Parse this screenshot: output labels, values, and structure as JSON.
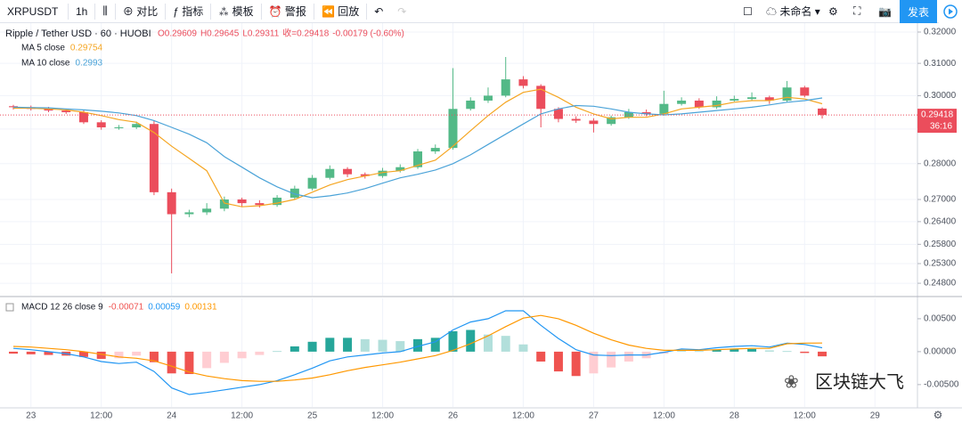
{
  "toolbar": {
    "symbol": "XRPUSDT",
    "interval": "1h",
    "compare": "对比",
    "indicators": "指标",
    "templates": "模板",
    "alert": "警报",
    "replay": "回放",
    "layout_name": "未命名",
    "publish": "发表"
  },
  "watermark": "区块链大飞",
  "chart_data": [
    {
      "type": "candlestick",
      "title": "Ripple / Tether USD · 60 · HUOBI",
      "readout": [
        "O0.29609",
        "H0.29645",
        "L0.29311",
        "收=0.29418",
        "-0.00179 (-0.60%)"
      ],
      "countdown": "36:16",
      "categories": [
        null,
        "23",
        null,
        null,
        null,
        "12:00",
        null,
        null,
        null,
        "24",
        null,
        null,
        null,
        "12:00",
        null,
        null,
        null,
        "25",
        null,
        null,
        null,
        "12:00",
        null,
        null,
        null,
        "26",
        null,
        null,
        null,
        "12:00",
        null,
        null,
        null,
        "27",
        null,
        null,
        null,
        "12:00",
        null,
        null,
        null,
        "28",
        null,
        null,
        null,
        "12:00",
        null,
        null,
        null,
        "29"
      ],
      "open": [
        0.2968,
        0.2965,
        0.296,
        0.2955,
        0.295,
        0.292,
        0.2905,
        0.2905,
        0.2915,
        0.272,
        0.266,
        0.2665,
        0.2675,
        0.27,
        0.269,
        0.2685,
        0.2705,
        0.273,
        0.276,
        0.2785,
        0.277,
        0.2765,
        0.278,
        0.279,
        0.2835,
        0.2845,
        0.296,
        0.2985,
        0.3,
        0.305,
        0.303,
        0.296,
        0.293,
        0.2925,
        0.2915,
        0.2935,
        0.295,
        0.2945,
        0.2975,
        0.2985,
        0.2965,
        0.2985,
        0.299,
        0.2995,
        0.2985,
        0.3025,
        0.29609,
        null,
        null,
        null
      ],
      "high": [
        0.2972,
        0.297,
        0.2966,
        0.296,
        0.2956,
        0.2926,
        0.2912,
        0.2922,
        0.2925,
        0.273,
        0.2672,
        0.269,
        0.2708,
        0.2705,
        0.2698,
        0.2712,
        0.2738,
        0.2768,
        0.2795,
        0.279,
        0.2775,
        0.2788,
        0.2798,
        0.2842,
        0.2855,
        0.3085,
        0.2995,
        0.3025,
        0.312,
        0.306,
        0.3035,
        0.2965,
        0.2938,
        0.2932,
        0.294,
        0.296,
        0.2958,
        0.3015,
        0.2995,
        0.2992,
        0.2998,
        0.3,
        0.301,
        0.3,
        0.3045,
        0.303,
        0.29645,
        null,
        null,
        null
      ],
      "low": [
        0.2958,
        0.2955,
        0.295,
        0.2945,
        0.2915,
        0.2898,
        0.2898,
        0.29,
        0.2712,
        0.2505,
        0.2652,
        0.2658,
        0.2668,
        0.268,
        0.2678,
        0.268,
        0.27,
        0.2725,
        0.2755,
        0.2762,
        0.2758,
        0.276,
        0.2775,
        0.2785,
        0.2828,
        0.284,
        0.2955,
        0.2978,
        0.2995,
        0.3022,
        0.2905,
        0.292,
        0.2918,
        0.289,
        0.291,
        0.293,
        0.2938,
        0.294,
        0.297,
        0.296,
        0.296,
        0.2982,
        0.2985,
        0.2975,
        0.298,
        0.2995,
        0.29311,
        null,
        null,
        null
      ],
      "close": [
        0.2965,
        0.296,
        0.2955,
        0.295,
        0.292,
        0.2905,
        0.2905,
        0.2915,
        0.272,
        0.266,
        0.2665,
        0.2675,
        0.27,
        0.269,
        0.2685,
        0.2705,
        0.273,
        0.276,
        0.2785,
        0.277,
        0.2765,
        0.278,
        0.279,
        0.2835,
        0.2845,
        0.296,
        0.2985,
        0.3,
        0.305,
        0.303,
        0.296,
        0.293,
        0.2925,
        0.2915,
        0.2935,
        0.295,
        0.2945,
        0.2975,
        0.2985,
        0.2965,
        0.2985,
        0.299,
        0.2995,
        0.2985,
        0.3025,
        0.3,
        0.29418,
        null,
        null,
        null
      ],
      "up_color": "#53b987",
      "down_color": "#eb4d5c",
      "lines": [
        {
          "name": "MA 5 close",
          "color": "#f5a623",
          "values": [
            0.2962,
            0.2962,
            0.296,
            0.2957,
            0.295,
            0.294,
            0.2928,
            0.292,
            0.289,
            0.285,
            0.2815,
            0.278,
            0.269,
            0.268,
            0.2683,
            0.269,
            0.27,
            0.272,
            0.274,
            0.2755,
            0.2765,
            0.2775,
            0.278,
            0.2795,
            0.281,
            0.285,
            0.2895,
            0.294,
            0.298,
            0.301,
            0.302,
            0.2995,
            0.2965,
            0.2945,
            0.293,
            0.2935,
            0.2935,
            0.2945,
            0.296,
            0.2965,
            0.297,
            0.298,
            0.2985,
            0.2985,
            0.2995,
            0.299,
            0.29754,
            null,
            null,
            null
          ]
        },
        {
          "name": "MA 10 close",
          "color": "#4ba3d8",
          "values": [
            0.2965,
            0.2964,
            0.2963,
            0.296,
            0.2957,
            0.2953,
            0.2948,
            0.294,
            0.2925,
            0.2905,
            0.2885,
            0.286,
            0.282,
            0.279,
            0.276,
            0.2735,
            0.2715,
            0.2705,
            0.271,
            0.2718,
            0.273,
            0.2745,
            0.276,
            0.277,
            0.2782,
            0.28,
            0.2825,
            0.2855,
            0.2885,
            0.2915,
            0.2945,
            0.296,
            0.297,
            0.2968,
            0.296,
            0.295,
            0.2945,
            0.2942,
            0.2945,
            0.295,
            0.2955,
            0.296,
            0.2965,
            0.2972,
            0.298,
            0.2985,
            0.2993,
            null,
            null,
            null
          ]
        }
      ],
      "log_scale": true,
      "grid": true,
      "ylim": [
        0.2449,
        0.3229
      ],
      "yticks": [
        {
          "value": 0.32,
          "label": "0.32000"
        },
        {
          "value": 0.31,
          "label": "0.31000"
        },
        {
          "value": 0.3,
          "label": "0.30000"
        },
        {
          "value": 0.29,
          "label": "0.29000"
        },
        {
          "value": 0.28,
          "label": "0.28000"
        },
        {
          "value": 0.27,
          "label": "0.27000"
        },
        {
          "value": 0.264,
          "label": "0.26400"
        },
        {
          "value": 0.258,
          "label": "0.25800"
        },
        {
          "value": 0.253,
          "label": "0.25300"
        },
        {
          "value": 0.248,
          "label": "0.24800"
        }
      ]
    },
    {
      "type": "macd",
      "title": "MACD 12 26 close 9",
      "series": [
        {
          "name": "histogram",
          "color": "#ef5350",
          "up_colors": [
            "#26a69a",
            "#b2dfdb"
          ],
          "down_colors": [
            "#ef5350",
            "#ffcdd2"
          ],
          "values": [
            -0.0003,
            -0.0004,
            -0.0005,
            -0.0006,
            -0.0008,
            -0.0011,
            -0.001,
            -0.0006,
            -0.0016,
            -0.0033,
            -0.0034,
            -0.0025,
            -0.0017,
            -0.001,
            -0.0005,
            0.0001,
            0.0008,
            0.0015,
            0.0021,
            0.0021,
            0.0019,
            0.0018,
            0.0016,
            0.0019,
            0.0021,
            0.0031,
            0.0033,
            0.0026,
            0.0024,
            0.0011,
            -0.0015,
            -0.003,
            -0.0037,
            -0.0033,
            -0.0024,
            -0.0015,
            -0.001,
            -0.0003,
            0.0002,
            0.0001,
            0.0003,
            0.0004,
            0.0004,
            0.0002,
            0.0001,
            -0.0002,
            -0.00071,
            null,
            null,
            null
          ]
        },
        {
          "name": "macd",
          "color": "#2196f3",
          "values": [
            0.0005,
            0.0003,
            0.0,
            -0.0003,
            -0.0008,
            -0.0015,
            -0.0018,
            -0.0016,
            -0.003,
            -0.0055,
            -0.0065,
            -0.0062,
            -0.0058,
            -0.0054,
            -0.005,
            -0.0044,
            -0.0035,
            -0.0025,
            -0.0014,
            -0.0008,
            -0.0005,
            -0.0002,
            0.0,
            0.0008,
            0.0015,
            0.0033,
            0.0045,
            0.005,
            0.0062,
            0.0062,
            0.004,
            0.002,
            0.0003,
            -0.0005,
            -0.0006,
            -0.0005,
            -0.0005,
            -0.0001,
            0.0004,
            0.0003,
            0.0006,
            0.0008,
            0.0009,
            0.0007,
            0.0013,
            0.0011,
            0.00059,
            null,
            null,
            null
          ]
        },
        {
          "name": "signal",
          "color": "#ff9800",
          "values": [
            0.0008,
            0.0007,
            0.0005,
            0.0003,
            0.0,
            -0.0004,
            -0.0008,
            -0.001,
            -0.0014,
            -0.0022,
            -0.0031,
            -0.0037,
            -0.0041,
            -0.0044,
            -0.0045,
            -0.0045,
            -0.0043,
            -0.004,
            -0.0035,
            -0.0029,
            -0.0024,
            -0.002,
            -0.0016,
            -0.0011,
            -0.0006,
            0.0002,
            0.0012,
            0.0024,
            0.0038,
            0.0051,
            0.0055,
            0.005,
            0.004,
            0.0028,
            0.0018,
            0.001,
            0.0005,
            0.0002,
            0.0002,
            0.0002,
            0.0003,
            0.0004,
            0.0005,
            0.0005,
            0.0012,
            0.0013,
            0.00131,
            null,
            null,
            null
          ]
        }
      ],
      "ylim": [
        -0.0084,
        0.0081
      ],
      "yticks": [
        {
          "value": 0.005,
          "label": "0.00500"
        },
        {
          "value": 0,
          "label": "0.00000"
        },
        {
          "value": -0.005,
          "label": "-0.00500"
        }
      ]
    }
  ]
}
